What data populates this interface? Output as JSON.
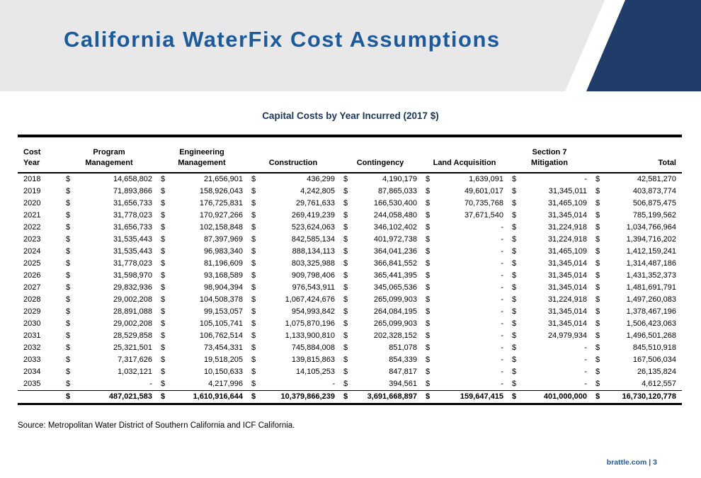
{
  "slide": {
    "title": "California WaterFix Cost Assumptions",
    "source_note": "Source: Metropolitan Water District of Southern California and ICF California.",
    "footer_text": "brattle.com | 3",
    "colors": {
      "title_blue": "#1b5a9e",
      "table_title_navy": "#17365d",
      "corner_navy": "#1f3d68",
      "band_gray": "#e8e8e8"
    }
  },
  "table": {
    "title": "Capital Costs by Year Incurred (2017 $)",
    "currency_symbol": "$",
    "columns": [
      {
        "lines": [
          "Cost",
          "Year"
        ]
      },
      {
        "lines": [
          "Program",
          "Management"
        ]
      },
      {
        "lines": [
          "Engineering",
          "Management"
        ]
      },
      {
        "lines": [
          "Construction"
        ]
      },
      {
        "lines": [
          "Contingency"
        ]
      },
      {
        "lines": [
          "Land Acquisition"
        ]
      },
      {
        "lines": [
          "Section 7",
          "Mitigation"
        ]
      },
      {
        "lines": [
          "Total"
        ]
      }
    ],
    "rows": [
      {
        "year": "2018",
        "values": [
          "14,658,802",
          "21,656,901",
          "436,299",
          "4,190,179",
          "1,639,091",
          "-",
          "42,581,270"
        ]
      },
      {
        "year": "2019",
        "values": [
          "71,893,866",
          "158,926,043",
          "4,242,805",
          "87,865,033",
          "49,601,017",
          "31,345,011",
          "403,873,774"
        ]
      },
      {
        "year": "2020",
        "values": [
          "31,656,733",
          "176,725,831",
          "29,761,633",
          "166,530,400",
          "70,735,768",
          "31,465,109",
          "506,875,475"
        ]
      },
      {
        "year": "2021",
        "values": [
          "31,778,023",
          "170,927,266",
          "269,419,239",
          "244,058,480",
          "37,671,540",
          "31,345,014",
          "785,199,562"
        ]
      },
      {
        "year": "2022",
        "values": [
          "31,656,733",
          "102,158,848",
          "523,624,063",
          "346,102,402",
          "-",
          "31,224,918",
          "1,034,766,964"
        ]
      },
      {
        "year": "2023",
        "values": [
          "31,535,443",
          "87,397,969",
          "842,585,134",
          "401,972,738",
          "-",
          "31,224,918",
          "1,394,716,202"
        ]
      },
      {
        "year": "2024",
        "values": [
          "31,535,443",
          "96,983,340",
          "888,134,113",
          "364,041,236",
          "-",
          "31,465,109",
          "1,412,159,241"
        ]
      },
      {
        "year": "2025",
        "values": [
          "31,778,023",
          "81,196,609",
          "803,325,988",
          "366,841,552",
          "-",
          "31,345,014",
          "1,314,487,186"
        ]
      },
      {
        "year": "2026",
        "values": [
          "31,598,970",
          "93,168,589",
          "909,798,406",
          "365,441,395",
          "-",
          "31,345,014",
          "1,431,352,373"
        ]
      },
      {
        "year": "2027",
        "values": [
          "29,832,936",
          "98,904,394",
          "976,543,911",
          "345,065,536",
          "-",
          "31,345,014",
          "1,481,691,791"
        ]
      },
      {
        "year": "2028",
        "values": [
          "29,002,208",
          "104,508,378",
          "1,067,424,676",
          "265,099,903",
          "-",
          "31,224,918",
          "1,497,260,083"
        ]
      },
      {
        "year": "2029",
        "values": [
          "28,891,088",
          "99,153,057",
          "954,993,842",
          "264,084,195",
          "-",
          "31,345,014",
          "1,378,467,196"
        ]
      },
      {
        "year": "2030",
        "values": [
          "29,002,208",
          "105,105,741",
          "1,075,870,196",
          "265,099,903",
          "-",
          "31,345,014",
          "1,506,423,063"
        ]
      },
      {
        "year": "2031",
        "values": [
          "28,529,858",
          "106,762,514",
          "1,133,900,810",
          "202,328,152",
          "-",
          "24,979,934",
          "1,496,501,268"
        ]
      },
      {
        "year": "2032",
        "values": [
          "25,321,501",
          "73,454,331",
          "745,884,008",
          "851,078",
          "-",
          "-",
          "845,510,918"
        ]
      },
      {
        "year": "2033",
        "values": [
          "7,317,626",
          "19,518,205",
          "139,815,863",
          "854,339",
          "-",
          "-",
          "167,506,034"
        ]
      },
      {
        "year": "2034",
        "values": [
          "1,032,121",
          "10,150,633",
          "14,105,253",
          "847,817",
          "-",
          "-",
          "26,135,824"
        ]
      },
      {
        "year": "2035",
        "values": [
          "-",
          "4,217,996",
          "-",
          "394,561",
          "-",
          "-",
          "4,612,557"
        ]
      }
    ],
    "total": {
      "year": "",
      "values": [
        "487,021,583",
        "1,610,916,644",
        "10,379,866,239",
        "3,691,668,897",
        "159,647,415",
        "401,000,000",
        "16,730,120,778"
      ]
    }
  }
}
